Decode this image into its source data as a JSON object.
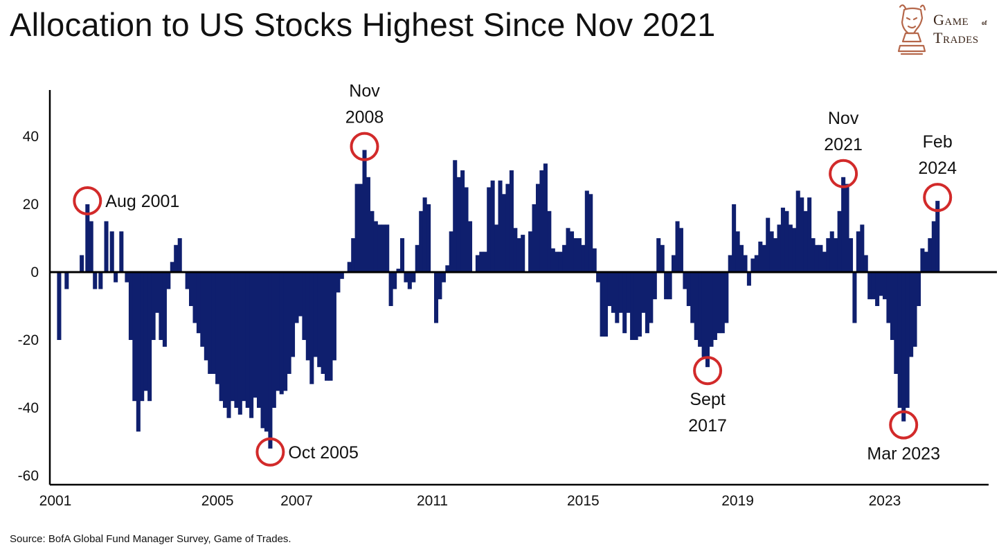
{
  "title": "Allocation to US Stocks Highest Since Nov 2021",
  "source": "Source: BofA Global Fund Manager Survey, Game of Trades.",
  "logo": {
    "line1": "Game",
    "of": "of",
    "line2": "Trades",
    "icon": "bull-chess-knight-icon",
    "color": "#b5674a"
  },
  "colors": {
    "bars": "#0f1f6e",
    "highlight": "#d22a2a",
    "axis": "#000000"
  },
  "chart_data": {
    "type": "bar",
    "title": "Allocation to US Stocks Highest Since Nov 2021",
    "xlabel": "",
    "ylabel": "",
    "xlim": [
      2001,
      2024.8
    ],
    "ylim": [
      -60,
      50
    ],
    "yticks": [
      40,
      20,
      0,
      -20,
      -40,
      -60
    ],
    "xticks": [
      {
        "label": "2001",
        "value": 2001.0
      },
      {
        "label": "2005",
        "value": 2005.3
      },
      {
        "label": "2007",
        "value": 2007.4
      },
      {
        "label": "2011",
        "value": 2011.0
      },
      {
        "label": "2015",
        "value": 2015.0
      },
      {
        "label": "2019",
        "value": 2019.1
      },
      {
        "label": "2023",
        "value": 2023.0
      }
    ],
    "grid": false,
    "series": [
      {
        "points": [
          [
            2001.1,
            -20
          ],
          [
            2001.3,
            -5
          ],
          [
            2001.5,
            0
          ],
          [
            2001.7,
            5
          ],
          [
            2001.85,
            20
          ],
          [
            2001.95,
            15
          ],
          [
            2002.05,
            -5
          ],
          [
            2002.2,
            -5
          ],
          [
            2002.35,
            15
          ],
          [
            2002.5,
            12
          ],
          [
            2002.6,
            -3
          ],
          [
            2002.75,
            12
          ],
          [
            2002.9,
            -3
          ],
          [
            2003.0,
            -20
          ],
          [
            2003.1,
            -38
          ],
          [
            2003.2,
            -47
          ],
          [
            2003.3,
            -38
          ],
          [
            2003.4,
            -35
          ],
          [
            2003.5,
            -38
          ],
          [
            2003.6,
            -20
          ],
          [
            2003.7,
            -12
          ],
          [
            2003.8,
            -20
          ],
          [
            2003.9,
            -22
          ],
          [
            2004.0,
            -5
          ],
          [
            2004.1,
            3
          ],
          [
            2004.2,
            8
          ],
          [
            2004.3,
            10
          ],
          [
            2004.4,
            0
          ],
          [
            2004.5,
            -5
          ],
          [
            2004.6,
            -10
          ],
          [
            2004.7,
            -15
          ],
          [
            2004.8,
            -18
          ],
          [
            2004.9,
            -22
          ],
          [
            2005.0,
            -26
          ],
          [
            2005.1,
            -30
          ],
          [
            2005.2,
            -30
          ],
          [
            2005.3,
            -33
          ],
          [
            2005.4,
            -38
          ],
          [
            2005.5,
            -40
          ],
          [
            2005.6,
            -43
          ],
          [
            2005.7,
            -38
          ],
          [
            2005.8,
            -40
          ],
          [
            2005.9,
            -42
          ],
          [
            2006.0,
            -38
          ],
          [
            2006.1,
            -40
          ],
          [
            2006.2,
            -43
          ],
          [
            2006.3,
            -37
          ],
          [
            2006.4,
            -40
          ],
          [
            2006.5,
            -46
          ],
          [
            2006.6,
            -47
          ],
          [
            2006.7,
            -52
          ],
          [
            2006.8,
            -40
          ],
          [
            2006.9,
            -35
          ],
          [
            2007.0,
            -36
          ],
          [
            2007.1,
            -35
          ],
          [
            2007.2,
            -30
          ],
          [
            2007.3,
            -25
          ],
          [
            2007.4,
            -15
          ],
          [
            2007.5,
            -13
          ],
          [
            2007.6,
            -20
          ],
          [
            2007.7,
            -26
          ],
          [
            2007.8,
            -33
          ],
          [
            2007.9,
            -25
          ],
          [
            2008.0,
            -28
          ],
          [
            2008.1,
            -30
          ],
          [
            2008.2,
            -32
          ],
          [
            2008.3,
            -32
          ],
          [
            2008.4,
            -26
          ],
          [
            2008.5,
            -6
          ],
          [
            2008.6,
            -2
          ],
          [
            2008.7,
            0
          ],
          [
            2008.8,
            3
          ],
          [
            2008.9,
            10
          ],
          [
            2009.0,
            26
          ],
          [
            2009.1,
            26
          ],
          [
            2009.2,
            36
          ],
          [
            2009.3,
            28
          ],
          [
            2009.4,
            18
          ],
          [
            2009.5,
            15
          ],
          [
            2009.6,
            14
          ],
          [
            2009.7,
            14
          ],
          [
            2009.8,
            14
          ],
          [
            2009.9,
            -10
          ],
          [
            2010.0,
            -5
          ],
          [
            2010.1,
            1
          ],
          [
            2010.2,
            10
          ],
          [
            2010.3,
            -3
          ],
          [
            2010.4,
            -5
          ],
          [
            2010.5,
            -3
          ],
          [
            2010.6,
            8
          ],
          [
            2010.7,
            18
          ],
          [
            2010.8,
            22
          ],
          [
            2010.9,
            20
          ],
          [
            2011.0,
            0
          ],
          [
            2011.1,
            -15
          ],
          [
            2011.2,
            -8
          ],
          [
            2011.3,
            -3
          ],
          [
            2011.4,
            2
          ],
          [
            2011.5,
            12
          ],
          [
            2011.6,
            33
          ],
          [
            2011.7,
            28
          ],
          [
            2011.8,
            30
          ],
          [
            2011.9,
            25
          ],
          [
            2012.0,
            15
          ],
          [
            2012.1,
            0
          ],
          [
            2012.2,
            5
          ],
          [
            2012.3,
            6
          ],
          [
            2012.4,
            6
          ],
          [
            2012.5,
            25
          ],
          [
            2012.6,
            27
          ],
          [
            2012.7,
            14
          ],
          [
            2012.8,
            27
          ],
          [
            2012.9,
            23
          ],
          [
            2013.0,
            26
          ],
          [
            2013.1,
            30
          ],
          [
            2013.2,
            13
          ],
          [
            2013.3,
            10
          ],
          [
            2013.4,
            11
          ],
          [
            2013.5,
            0
          ],
          [
            2013.6,
            12
          ],
          [
            2013.7,
            20
          ],
          [
            2013.8,
            26
          ],
          [
            2013.9,
            30
          ],
          [
            2014.0,
            32
          ],
          [
            2014.1,
            18
          ],
          [
            2014.2,
            7
          ],
          [
            2014.3,
            6
          ],
          [
            2014.4,
            6
          ],
          [
            2014.5,
            8
          ],
          [
            2014.6,
            13
          ],
          [
            2014.7,
            12
          ],
          [
            2014.8,
            10
          ],
          [
            2014.9,
            10
          ],
          [
            2015.0,
            8
          ],
          [
            2015.1,
            24
          ],
          [
            2015.2,
            23
          ],
          [
            2015.3,
            7
          ],
          [
            2015.4,
            -3
          ],
          [
            2015.5,
            -19
          ],
          [
            2015.6,
            -19
          ],
          [
            2015.7,
            -10
          ],
          [
            2015.8,
            -12
          ],
          [
            2015.9,
            -15
          ],
          [
            2016.0,
            -12
          ],
          [
            2016.1,
            -18
          ],
          [
            2016.2,
            -12
          ],
          [
            2016.3,
            -20
          ],
          [
            2016.4,
            -20
          ],
          [
            2016.5,
            -19
          ],
          [
            2016.6,
            -12
          ],
          [
            2016.7,
            -18
          ],
          [
            2016.8,
            -15
          ],
          [
            2016.9,
            -8
          ],
          [
            2017.0,
            10
          ],
          [
            2017.1,
            8
          ],
          [
            2017.2,
            -8
          ],
          [
            2017.3,
            -8
          ],
          [
            2017.4,
            5
          ],
          [
            2017.5,
            15
          ],
          [
            2017.6,
            13
          ],
          [
            2017.7,
            -5
          ],
          [
            2017.8,
            -10
          ],
          [
            2017.9,
            -15
          ],
          [
            2018.0,
            -20
          ],
          [
            2018.1,
            -22
          ],
          [
            2018.2,
            -25
          ],
          [
            2018.3,
            -28
          ],
          [
            2018.4,
            -22
          ],
          [
            2018.5,
            -20
          ],
          [
            2018.6,
            -18
          ],
          [
            2018.7,
            -18
          ],
          [
            2018.8,
            -15
          ],
          [
            2018.9,
            5
          ],
          [
            2019.0,
            20
          ],
          [
            2019.1,
            12
          ],
          [
            2019.2,
            8
          ],
          [
            2019.3,
            5
          ],
          [
            2019.4,
            -4
          ],
          [
            2019.5,
            4
          ],
          [
            2019.6,
            5
          ],
          [
            2019.7,
            9
          ],
          [
            2019.8,
            8
          ],
          [
            2019.9,
            16
          ],
          [
            2020.0,
            12
          ],
          [
            2020.1,
            10
          ],
          [
            2020.2,
            14
          ],
          [
            2020.3,
            19
          ],
          [
            2020.4,
            18
          ],
          [
            2020.5,
            14
          ],
          [
            2020.6,
            13
          ],
          [
            2020.7,
            24
          ],
          [
            2020.8,
            22
          ],
          [
            2020.9,
            18
          ],
          [
            2021.0,
            22
          ],
          [
            2021.1,
            10
          ],
          [
            2021.2,
            8
          ],
          [
            2021.3,
            8
          ],
          [
            2021.4,
            6
          ],
          [
            2021.5,
            10
          ],
          [
            2021.6,
            12
          ],
          [
            2021.7,
            10
          ],
          [
            2021.8,
            18
          ],
          [
            2021.9,
            28
          ],
          [
            2022.0,
            26
          ],
          [
            2022.1,
            10
          ],
          [
            2022.2,
            -15
          ],
          [
            2022.3,
            12
          ],
          [
            2022.4,
            14
          ],
          [
            2022.5,
            5
          ],
          [
            2022.6,
            -8
          ],
          [
            2022.7,
            -8
          ],
          [
            2022.8,
            -10
          ],
          [
            2022.9,
            -7
          ],
          [
            2023.0,
            -8
          ],
          [
            2023.1,
            -15
          ],
          [
            2023.2,
            -20
          ],
          [
            2023.3,
            -30
          ],
          [
            2023.4,
            -40
          ],
          [
            2023.5,
            -44
          ],
          [
            2023.6,
            -40
          ],
          [
            2023.7,
            -25
          ],
          [
            2023.8,
            -22
          ],
          [
            2023.9,
            -10
          ],
          [
            2024.0,
            7
          ],
          [
            2024.1,
            6
          ],
          [
            2024.2,
            10
          ],
          [
            2024.3,
            15
          ],
          [
            2024.4,
            21
          ]
        ]
      }
    ],
    "annotations": [
      {
        "label": [
          "Aug 2001"
        ],
        "x": 2001.85,
        "y": 20,
        "label_pos": "right"
      },
      {
        "label": [
          "Oct 2005"
        ],
        "x": 2006.7,
        "y": -52,
        "label_pos": "right"
      },
      {
        "label": [
          "Nov",
          "2008"
        ],
        "x": 2009.2,
        "y": 36,
        "label_pos": "above"
      },
      {
        "label": [
          "Sept",
          "2017"
        ],
        "x": 2018.3,
        "y": -28,
        "label_pos": "below"
      },
      {
        "label": [
          "Nov",
          "2021"
        ],
        "x": 2021.9,
        "y": 28,
        "label_pos": "above"
      },
      {
        "label": [
          "Mar 2023"
        ],
        "x": 2023.5,
        "y": -44,
        "label_pos": "below"
      },
      {
        "label": [
          "Feb",
          "2024"
        ],
        "x": 2024.4,
        "y": 21,
        "label_pos": "above"
      }
    ]
  }
}
